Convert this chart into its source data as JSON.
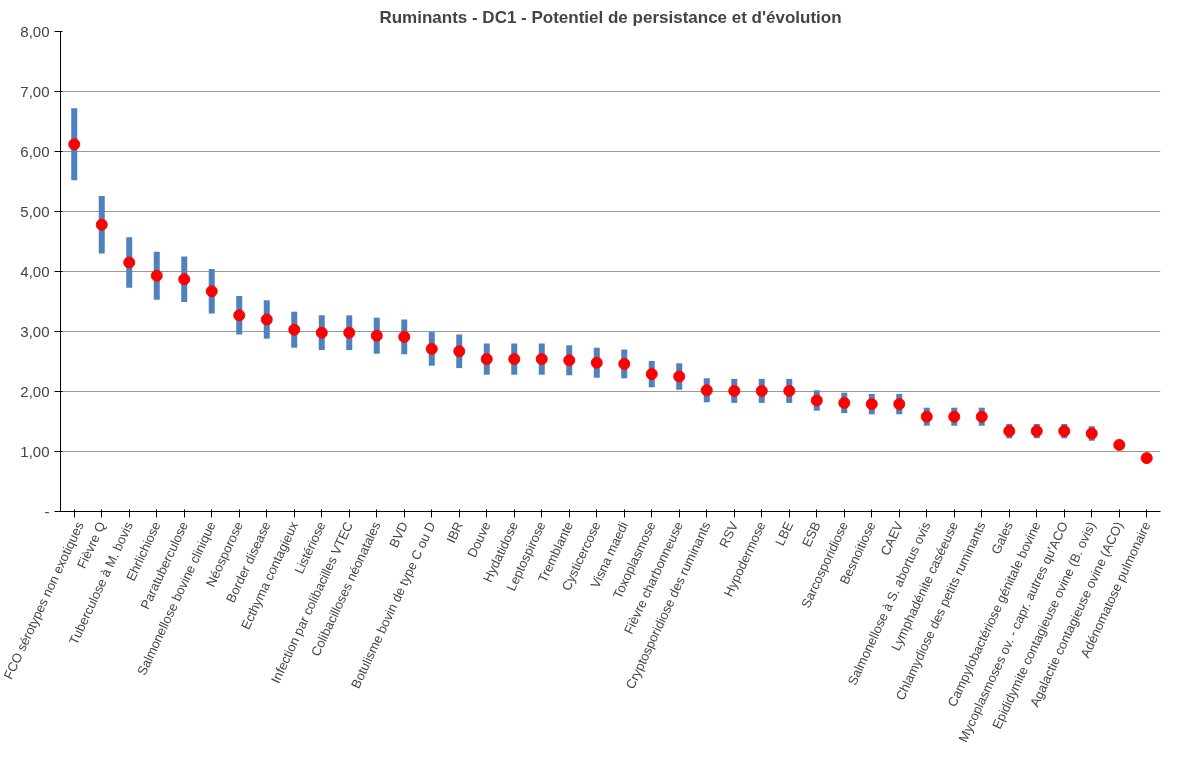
{
  "chart_data": {
    "type": "scatter",
    "title": "Ruminants - DC1 - Potentiel de persistance et d'évolution",
    "categories": [
      "FCO sérotypes non exotiques",
      "Fièvre Q",
      "Tuberculose à M. bovis",
      "Ehrlichiose",
      "Paratuberculose",
      "Salmonellose bovine clinique",
      "Néosporose",
      "Border disease",
      "Ecthyma contagieux",
      "Listériose",
      "Infection par colibacilles VTEC",
      "Colibacilloses néonatales",
      "BVD",
      "Botulisme bovin de type C ou D",
      "IBR",
      "Douve",
      "Hydatidose",
      "Leptospirose",
      "Tremblante",
      "Cysticercose",
      "Visna maedi",
      "Toxoplasmose",
      "Fièvre charbonneuse",
      "Cryptosporidiose des ruminants",
      "RSV",
      "Hypodermose",
      "LBE",
      "ESB",
      "Sarcosporidiose",
      "Besnoitiose",
      "CAEV",
      "Salmonellose à S. abortus ovis",
      "Lymphadénite caséeuse",
      "Chlamydiose des petits ruminants",
      "Gales",
      "Campylobactériose génitale bovine",
      "Mycoplasmoses ov. - capr. autres qu'ACO",
      "Epididymite contagieuse ovine (B. ovis)",
      "Agalactie contagieuse ovine (ACO)",
      "Adénomatose pulmonaire"
    ],
    "series": [
      {
        "color": "#ff0000",
        "values": [
          6.12,
          4.78,
          4.15,
          3.93,
          3.87,
          3.67,
          3.27,
          3.2,
          3.03,
          2.98,
          2.98,
          2.93,
          2.91,
          2.71,
          2.67,
          2.54,
          2.54,
          2.54,
          2.52,
          2.48,
          2.46,
          2.29,
          2.25,
          2.02,
          2.01,
          2.01,
          2.01,
          1.85,
          1.81,
          1.79,
          1.79,
          1.58,
          1.58,
          1.58,
          1.34,
          1.34,
          1.34,
          1.3,
          1.11,
          0.89
        ],
        "errors": [
          0.6,
          0.48,
          0.42,
          0.4,
          0.38,
          0.37,
          0.32,
          0.32,
          0.3,
          0.29,
          0.29,
          0.3,
          0.29,
          0.28,
          0.28,
          0.26,
          0.26,
          0.26,
          0.25,
          0.25,
          0.24,
          0.22,
          0.22,
          0.2,
          0.2,
          0.2,
          0.2,
          0.17,
          0.17,
          0.17,
          0.17,
          0.15,
          0.15,
          0.15,
          0.12,
          0.12,
          0.12,
          0.12,
          null,
          null
        ]
      }
    ],
    "marker": "circle",
    "grid": "y",
    "ylim": [
      0,
      8
    ],
    "yticks": [
      {
        "value": 0,
        "label": "-"
      },
      {
        "value": 1,
        "label": "1,00"
      },
      {
        "value": 2,
        "label": "2,00"
      },
      {
        "value": 3,
        "label": "3,00"
      },
      {
        "value": 4,
        "label": "4,00"
      },
      {
        "value": 5,
        "label": "5,00"
      },
      {
        "value": 6,
        "label": "6,00"
      },
      {
        "value": 7,
        "label": "7,00"
      },
      {
        "value": 8,
        "label": "8,00"
      }
    ]
  }
}
